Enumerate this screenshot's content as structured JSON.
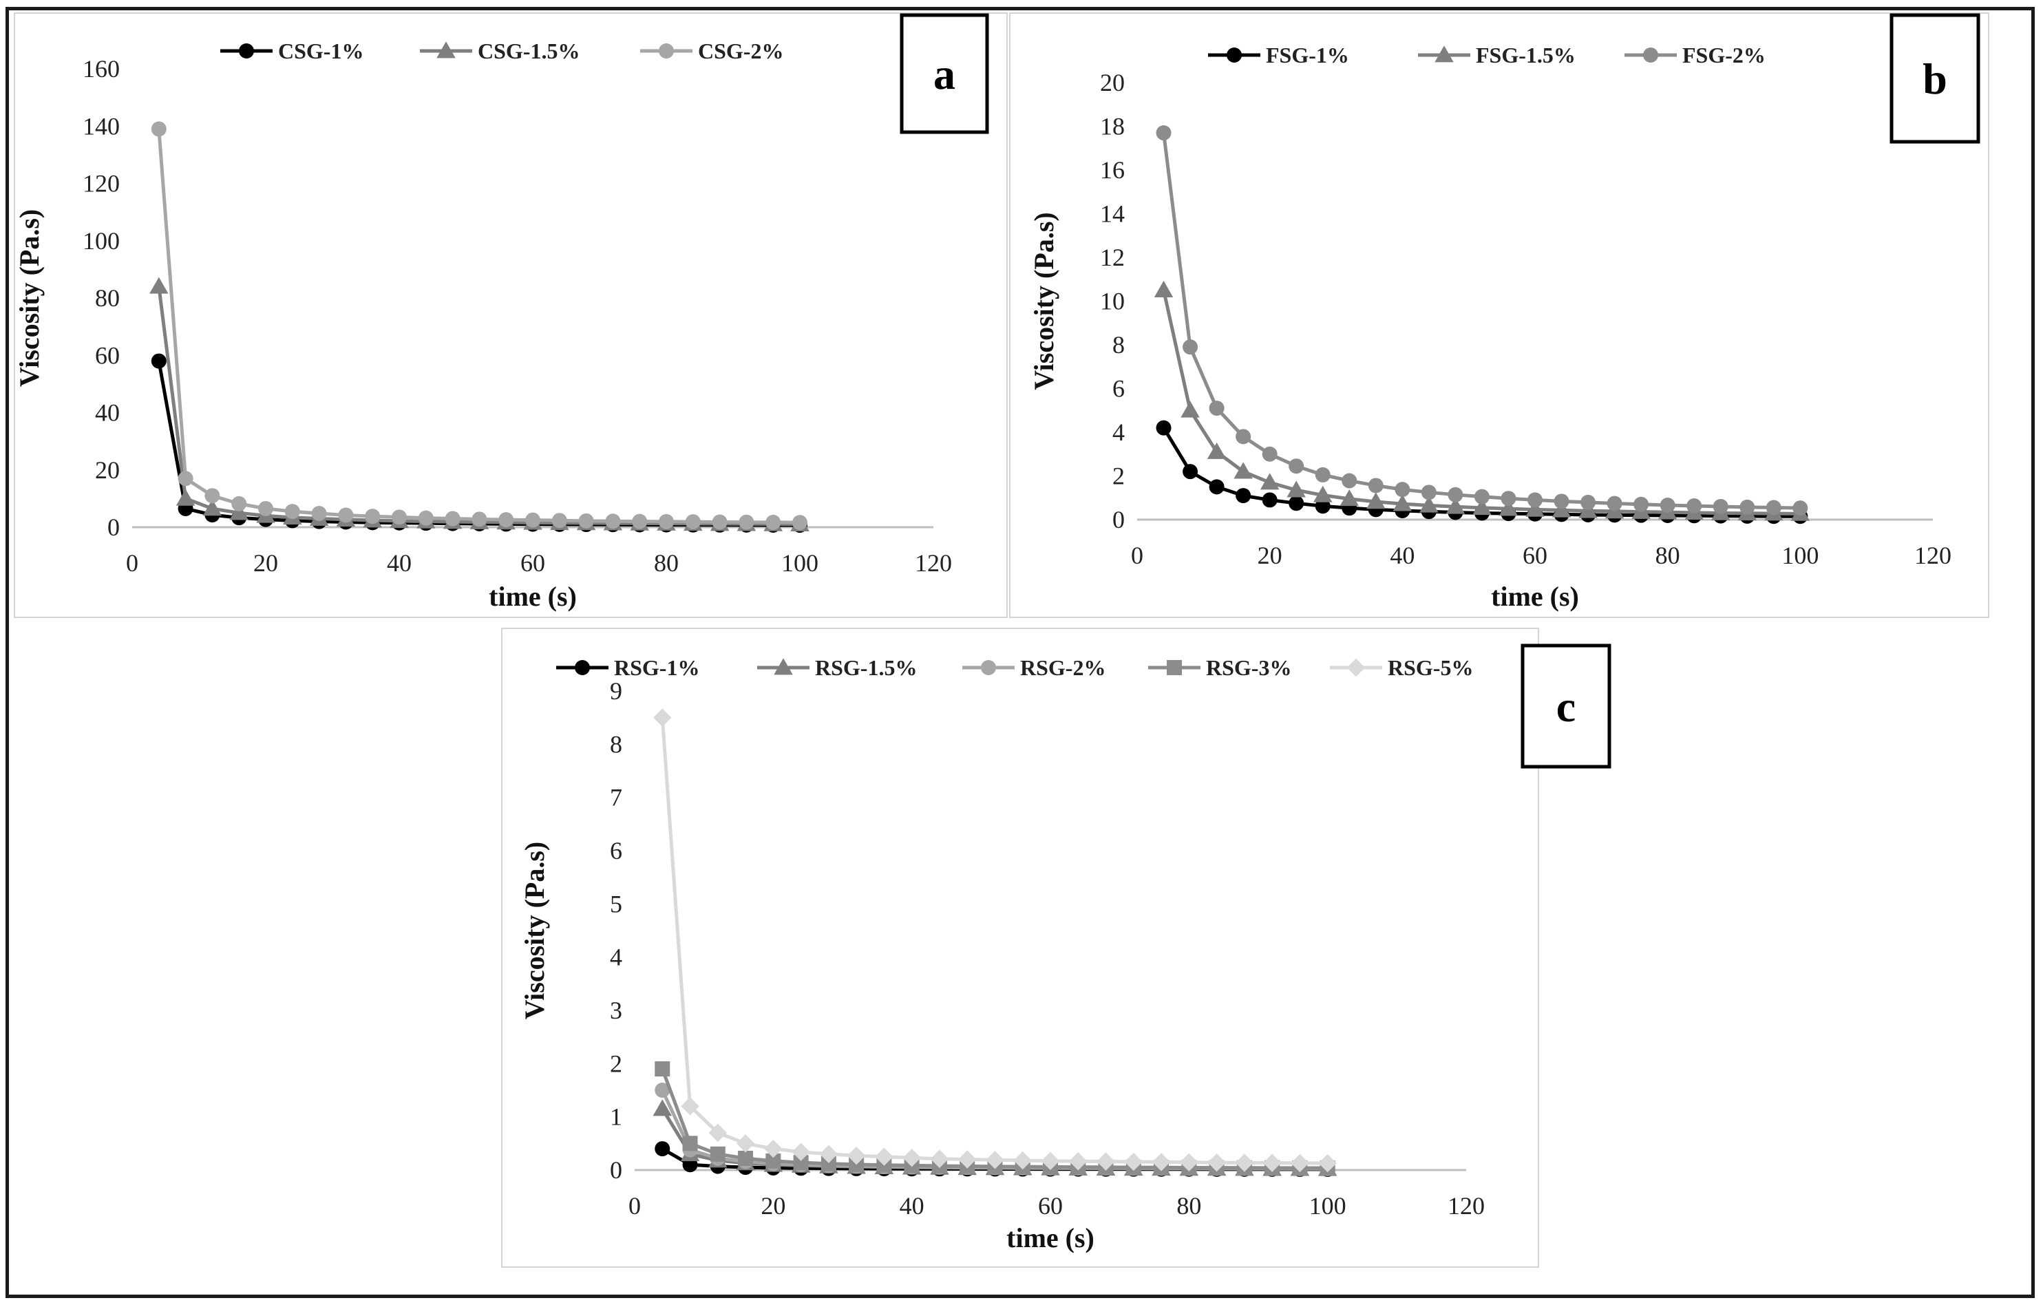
{
  "chart_data": [
    {
      "id": "a",
      "type": "line",
      "panel_label": "a",
      "xlabel": "time (s)",
      "ylabel": "Viscosity (Pa.s)",
      "xlim": [
        0,
        120
      ],
      "ylim": [
        0,
        160
      ],
      "x_ticks": [
        0,
        20,
        40,
        60,
        80,
        100,
        120
      ],
      "y_ticks": [
        0,
        20,
        40,
        60,
        80,
        100,
        120,
        140,
        160
      ],
      "legend_position": "top",
      "grid": false,
      "x": [
        4,
        8,
        12,
        16,
        20,
        24,
        28,
        32,
        36,
        40,
        44,
        48,
        52,
        56,
        60,
        64,
        68,
        72,
        76,
        80,
        84,
        88,
        92,
        96,
        100
      ],
      "series": [
        {
          "name": "CSG-1%",
          "color": "#000000",
          "marker": "circle",
          "values": [
            58,
            6.5,
            4.3,
            3.3,
            2.7,
            2.3,
            2.0,
            1.8,
            1.6,
            1.5,
            1.4,
            1.3,
            1.2,
            1.1,
            1.05,
            1.0,
            0.95,
            0.9,
            0.85,
            0.82,
            0.8,
            0.77,
            0.75,
            0.72,
            0.7
          ]
        },
        {
          "name": "CSG-1.5%",
          "color": "#7f7f7f",
          "marker": "triangle",
          "values": [
            84,
            10,
            6.5,
            5.0,
            4.0,
            3.4,
            3.0,
            2.7,
            2.4,
            2.2,
            2.05,
            1.9,
            1.8,
            1.7,
            1.6,
            1.5,
            1.45,
            1.4,
            1.35,
            1.3,
            1.25,
            1.2,
            1.15,
            1.1,
            1.05
          ]
        },
        {
          "name": "CSG-2%",
          "color": "#a6a6a6",
          "marker": "circle",
          "values": [
            139,
            17,
            11,
            8.2,
            6.5,
            5.5,
            4.8,
            4.2,
            3.8,
            3.5,
            3.2,
            3.0,
            2.8,
            2.6,
            2.5,
            2.35,
            2.2,
            2.1,
            2.0,
            1.95,
            1.9,
            1.8,
            1.75,
            1.7,
            1.65
          ]
        }
      ]
    },
    {
      "id": "b",
      "type": "line",
      "panel_label": "b",
      "xlabel": "time (s)",
      "ylabel": "Viscosity (Pa.s)",
      "xlim": [
        0,
        120
      ],
      "ylim": [
        0,
        20
      ],
      "x_ticks": [
        0,
        20,
        40,
        60,
        80,
        100,
        120
      ],
      "y_ticks": [
        0,
        2,
        4,
        6,
        8,
        10,
        12,
        14,
        16,
        18,
        20
      ],
      "legend_position": "top",
      "grid": false,
      "x": [
        4,
        8,
        12,
        16,
        20,
        24,
        28,
        32,
        36,
        40,
        44,
        48,
        52,
        56,
        60,
        64,
        68,
        72,
        76,
        80,
        84,
        88,
        92,
        96,
        100
      ],
      "series": [
        {
          "name": "FSG-1%",
          "color": "#000000",
          "marker": "circle",
          "values": [
            4.2,
            2.2,
            1.5,
            1.1,
            0.9,
            0.75,
            0.62,
            0.53,
            0.46,
            0.41,
            0.37,
            0.33,
            0.3,
            0.28,
            0.26,
            0.24,
            0.22,
            0.21,
            0.2,
            0.19,
            0.18,
            0.17,
            0.16,
            0.15,
            0.15
          ]
        },
        {
          "name": "FSG-1.5%",
          "color": "#7f7f7f",
          "marker": "triangle",
          "values": [
            10.5,
            5.0,
            3.1,
            2.2,
            1.7,
            1.35,
            1.12,
            0.95,
            0.82,
            0.72,
            0.65,
            0.59,
            0.54,
            0.5,
            0.46,
            0.43,
            0.4,
            0.38,
            0.36,
            0.34,
            0.32,
            0.3,
            0.29,
            0.28,
            0.27
          ]
        },
        {
          "name": "FSG-2%",
          "color": "#8c8c8c",
          "marker": "circle",
          "values": [
            17.7,
            7.9,
            5.1,
            3.8,
            3.0,
            2.45,
            2.05,
            1.78,
            1.56,
            1.38,
            1.25,
            1.14,
            1.05,
            0.97,
            0.9,
            0.84,
            0.79,
            0.74,
            0.7,
            0.66,
            0.63,
            0.6,
            0.57,
            0.55,
            0.53
          ]
        }
      ]
    },
    {
      "id": "c",
      "type": "line",
      "panel_label": "c",
      "xlabel": "time (s)",
      "ylabel": "Viscosity (Pa.s)",
      "xlim": [
        0,
        120
      ],
      "ylim": [
        0,
        9
      ],
      "x_ticks": [
        0,
        20,
        40,
        60,
        80,
        100,
        120
      ],
      "y_ticks": [
        0,
        1,
        2,
        3,
        4,
        5,
        6,
        7,
        8,
        9
      ],
      "legend_position": "top",
      "grid": false,
      "x": [
        4,
        8,
        12,
        16,
        20,
        24,
        28,
        32,
        36,
        40,
        44,
        48,
        52,
        56,
        60,
        64,
        68,
        72,
        76,
        80,
        84,
        88,
        92,
        96,
        100
      ],
      "series": [
        {
          "name": "RSG-1%",
          "color": "#000000",
          "marker": "circle",
          "values": [
            0.4,
            0.1,
            0.07,
            0.05,
            0.04,
            0.035,
            0.03,
            0.027,
            0.025,
            0.023,
            0.022,
            0.021,
            0.02,
            0.019,
            0.018,
            0.018,
            0.017,
            0.017,
            0.016,
            0.016,
            0.015,
            0.015,
            0.015,
            0.014,
            0.014
          ]
        },
        {
          "name": "RSG-1.5%",
          "color": "#7f7f7f",
          "marker": "triangle",
          "values": [
            1.15,
            0.3,
            0.18,
            0.13,
            0.1,
            0.085,
            0.072,
            0.063,
            0.056,
            0.05,
            0.046,
            0.042,
            0.039,
            0.036,
            0.034,
            0.032,
            0.03,
            0.029,
            0.028,
            0.027,
            0.026,
            0.025,
            0.024,
            0.023,
            0.022
          ]
        },
        {
          "name": "RSG-2%",
          "color": "#a6a6a6",
          "marker": "circle",
          "values": [
            1.5,
            0.38,
            0.22,
            0.16,
            0.12,
            0.1,
            0.085,
            0.075,
            0.067,
            0.06,
            0.055,
            0.05,
            0.047,
            0.044,
            0.041,
            0.039,
            0.037,
            0.035,
            0.034,
            0.032,
            0.031,
            0.03,
            0.029,
            0.028,
            0.027
          ]
        },
        {
          "name": "RSG-3%",
          "color": "#8c8c8c",
          "marker": "square",
          "values": [
            1.9,
            0.5,
            0.3,
            0.22,
            0.17,
            0.14,
            0.12,
            0.105,
            0.094,
            0.085,
            0.078,
            0.072,
            0.067,
            0.063,
            0.059,
            0.056,
            0.053,
            0.05,
            0.048,
            0.046,
            0.044,
            0.042,
            0.041,
            0.039,
            0.038
          ]
        },
        {
          "name": "RSG-5%",
          "color": "#d9d9d9",
          "marker": "diamond",
          "values": [
            8.5,
            1.2,
            0.7,
            0.5,
            0.4,
            0.34,
            0.3,
            0.27,
            0.25,
            0.23,
            0.21,
            0.2,
            0.19,
            0.18,
            0.17,
            0.165,
            0.16,
            0.155,
            0.15,
            0.145,
            0.14,
            0.137,
            0.134,
            0.131,
            0.128
          ]
        }
      ]
    }
  ]
}
